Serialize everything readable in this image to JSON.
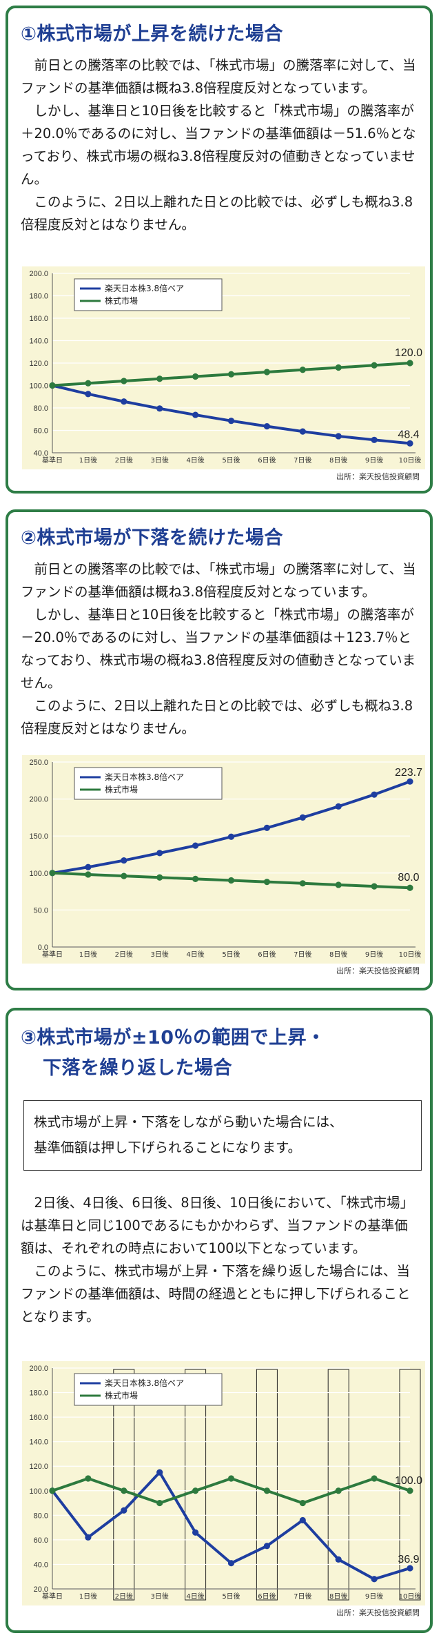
{
  "colors": {
    "border": "#2e7d46",
    "heading": "#1f3f93",
    "bear": "#1e3ea0",
    "market": "#2d7a3e",
    "chart_bg": "#f8f5d6"
  },
  "sections": [
    {
      "heading": "①株式市場が上昇を続けた場合",
      "paragraphs": [
        "前日との騰落率の比較では、「株式市場」の騰落率に対して、当ファンドの基準価額は概ね3.8倍程度反対となっています。",
        "しかし、基準日と10日後を比較すると「株式市場」の騰落率が＋20.0％であるのに対し、当ファンドの基準価額は－51.6％となっており、株式市場の概ね3.8倍程度反対の値動きとなっていません。",
        "このように、2日以上離れた日との比較では、必ずしも概ね3.8倍程度反対とはなりません。"
      ]
    },
    {
      "heading": "②株式市場が下落を続けた場合",
      "paragraphs": [
        "前日との騰落率の比較では、「株式市場」の騰落率に対して、当ファンドの基準価額は概ね3.8倍程度反対となっています。",
        "しかし、基準日と10日後を比較すると「株式市場」の騰落率が－20.0％であるのに対し、当ファンドの基準価額は＋123.7％となっており、株式市場の概ね3.8倍程度反対の値動きとなっていません。",
        "このように、2日以上離れた日との比較では、必ずしも概ね3.8倍程度反対とはなりません。"
      ]
    },
    {
      "heading_lines": [
        "③株式市場が±10％の範囲で上昇・",
        "下落を繰り返した場合"
      ],
      "callout_lines": [
        "株式市場が上昇・下落をしながら動いた場合には、",
        "基準価額は押し下げられることになります。"
      ],
      "paragraphs": [
        "2日後、4日後、6日後、8日後、10日後において、「株式市場」は基準日と同じ100であるにもかかわらず、当ファンドの基準価額は、それぞれの時点において100以下となっています。",
        "このように、株式市場が上昇・下落を繰り返した場合には、当ファンドの基準価額は、時間の経過とともに押し下げられることとなります。"
      ]
    }
  ],
  "chart_data": [
    {
      "type": "line",
      "categories": [
        "基準日",
        "1日後",
        "2日後",
        "3日後",
        "4日後",
        "5日後",
        "6日後",
        "7日後",
        "8日後",
        "9日後",
        "10日後"
      ],
      "yticks": [
        "200.0",
        "180.0",
        "160.0",
        "140.0",
        "120.0",
        "100.0",
        "80.0",
        "60.0",
        "40.0"
      ],
      "ylim": [
        40,
        200
      ],
      "series": [
        {
          "name": "楽天日本株3.8倍ベア",
          "color": "#1e3ea0",
          "values": [
            100,
            92.4,
            85.7,
            79.5,
            73.8,
            68.5,
            63.6,
            59.0,
            54.8,
            51.5,
            48.4
          ]
        },
        {
          "name": "株式市場",
          "color": "#2d7a3e",
          "values": [
            100,
            102,
            104,
            106,
            108,
            110,
            112,
            114,
            116,
            118,
            120
          ]
        }
      ],
      "end_labels": [
        "48.4",
        "120.0"
      ],
      "source": "出所：楽天投信投資顧問",
      "highlight": []
    },
    {
      "type": "line",
      "categories": [
        "基準日",
        "1日後",
        "2日後",
        "3日後",
        "4日後",
        "5日後",
        "6日後",
        "7日後",
        "8日後",
        "9日後",
        "10日後"
      ],
      "yticks": [
        "250.0",
        "200.0",
        "150.0",
        "100.0",
        "50.0",
        "0.0"
      ],
      "ylim": [
        0,
        250
      ],
      "series": [
        {
          "name": "楽天日本株3.8倍ベア",
          "color": "#1e3ea0",
          "values": [
            100,
            108,
            117,
            127,
            137,
            149,
            161,
            175,
            190,
            206,
            223.7
          ]
        },
        {
          "name": "株式市場",
          "color": "#2d7a3e",
          "values": [
            100,
            98,
            96,
            94,
            92,
            90,
            88,
            86,
            84,
            82,
            80
          ]
        }
      ],
      "end_labels": [
        "223.7",
        "80.0"
      ],
      "source": "出所：楽天投信投資顧問",
      "highlight": []
    },
    {
      "type": "line",
      "categories": [
        "基準日",
        "1日後",
        "2日後",
        "3日後",
        "4日後",
        "5日後",
        "6日後",
        "7日後",
        "8日後",
        "9日後",
        "10日後"
      ],
      "yticks": [
        "200.0",
        "180.0",
        "160.0",
        "140.0",
        "120.0",
        "100.0",
        "80.0",
        "60.0",
        "40.0",
        "20.0"
      ],
      "ylim": [
        20,
        200
      ],
      "series": [
        {
          "name": "楽天日本株3.8倍ベア",
          "color": "#1e3ea0",
          "values": [
            100,
            62,
            84,
            115,
            66,
            41,
            55,
            76,
            44,
            28,
            36.9
          ]
        },
        {
          "name": "株式市場",
          "color": "#2d7a3e",
          "values": [
            100,
            110,
            100,
            90,
            100,
            110,
            100,
            90,
            100,
            110,
            100
          ]
        }
      ],
      "end_labels": [
        "36.9",
        "100.0"
      ],
      "source": "出所：楽天投信投資顧問",
      "highlight": [
        2,
        4,
        6,
        8,
        10
      ]
    }
  ]
}
